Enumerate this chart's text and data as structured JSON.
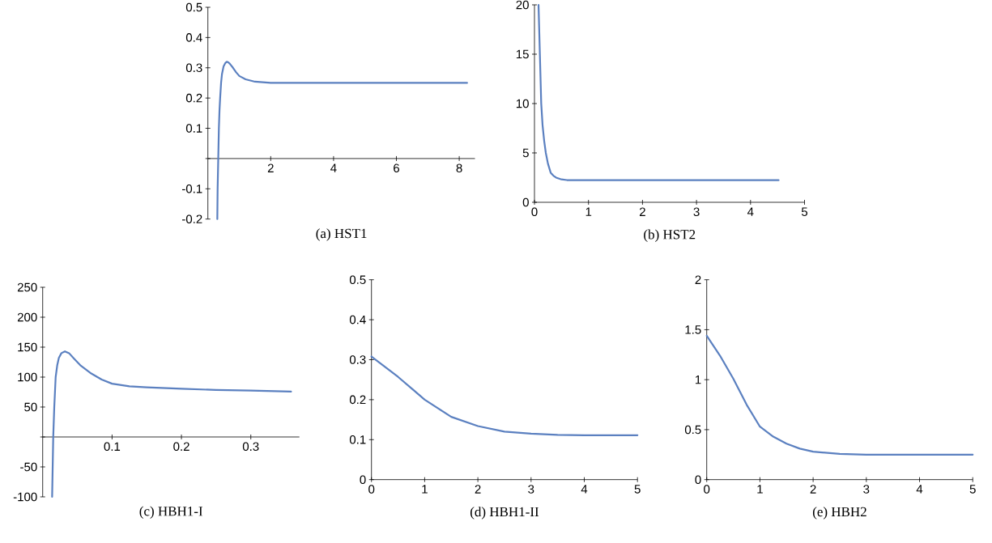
{
  "chart_data": [
    {
      "type": "line",
      "title": "(a) HST1",
      "color": "#5b80c0",
      "x": [
        0.3,
        0.31,
        0.33,
        0.35,
        0.37,
        0.39,
        0.42,
        0.45,
        0.5,
        0.55,
        0.6,
        0.65,
        0.7,
        0.8,
        0.9,
        1.0,
        1.2,
        1.5,
        2,
        4,
        8.25
      ],
      "values": [
        -0.2,
        -0.1,
        0,
        0.1,
        0.16,
        0.2,
        0.25,
        0.28,
        0.305,
        0.315,
        0.32,
        0.318,
        0.313,
        0.3,
        0.285,
        0.273,
        0.262,
        0.254,
        0.25,
        0.25,
        0.25
      ],
      "xlim": [
        0,
        8.5
      ],
      "ylim": [
        -0.2,
        0.5
      ],
      "xticks": [
        2,
        4,
        6,
        8
      ],
      "yticks": [
        -0.2,
        -0.1,
        {
          "value": 0,
          "label": null
        },
        0.1,
        0.2,
        0.3,
        0.4,
        0.5
      ]
    },
    {
      "type": "line",
      "title": "(b) HST2",
      "color": "#5b80c0",
      "x": [
        0.075,
        0.09,
        0.1,
        0.125,
        0.15,
        0.18,
        0.21,
        0.25,
        0.3,
        0.35,
        0.4,
        0.5,
        0.6,
        0.8,
        1,
        2,
        4.52
      ],
      "values": [
        20,
        17,
        15,
        10,
        7.8,
        6.2,
        5,
        3.9,
        3,
        2.7,
        2.5,
        2.32,
        2.25,
        2.24,
        2.24,
        2.24,
        2.24
      ],
      "xlim": [
        0,
        5
      ],
      "ylim": [
        0,
        20
      ],
      "xticks": [
        0,
        1,
        2,
        3,
        4,
        5
      ],
      "yticks": [
        0,
        5,
        10,
        15,
        20
      ]
    },
    {
      "type": "line",
      "title": "(c) HBH1-I",
      "color": "#5b80c0",
      "x": [
        0.0136,
        0.0152,
        0.0167,
        0.0187,
        0.021,
        0.0233,
        0.027,
        0.032,
        0.038,
        0.045,
        0.055,
        0.07,
        0.085,
        0.1,
        0.125,
        0.15,
        0.2,
        0.25,
        0.3,
        0.358
      ],
      "values": [
        -100,
        0,
        50,
        100,
        120,
        132,
        140,
        143,
        140,
        131,
        119,
        106,
        96,
        89,
        84.5,
        83,
        80.5,
        78.5,
        77.5,
        75.7
      ],
      "xlim": [
        0,
        0.37
      ],
      "ylim": [
        -100,
        250
      ],
      "xticks": [
        0.1,
        0.2,
        0.3
      ],
      "yticks": [
        -100,
        -50,
        {
          "value": 0,
          "label": null
        },
        50,
        100,
        150,
        200,
        250
      ]
    },
    {
      "type": "line",
      "title": "(d) HBH1-II",
      "color": "#5b80c0",
      "x": [
        0,
        0.5,
        1,
        1.5,
        2,
        2.5,
        3,
        3.5,
        4,
        5
      ],
      "values": [
        0.308,
        0.257,
        0.2,
        0.157,
        0.134,
        0.12,
        0.115,
        0.112,
        0.111,
        0.111
      ],
      "xlim": [
        0,
        5
      ],
      "ylim": [
        0,
        0.5
      ],
      "xticks": [
        0,
        1,
        2,
        3,
        4,
        5
      ],
      "yticks": [
        0,
        0.1,
        0.2,
        0.3,
        0.4,
        0.5
      ]
    },
    {
      "type": "line",
      "title": "(e) HBH2",
      "color": "#5b80c0",
      "x": [
        0,
        0.25,
        0.5,
        0.75,
        1,
        1.25,
        1.5,
        1.75,
        2,
        2.5,
        3,
        4,
        5
      ],
      "values": [
        1.44,
        1.24,
        1.01,
        0.75,
        0.53,
        0.43,
        0.36,
        0.31,
        0.28,
        0.257,
        0.25,
        0.25,
        0.25
      ],
      "xlim": [
        0,
        5
      ],
      "ylim": [
        0,
        2
      ],
      "xticks": [
        0,
        1,
        2,
        3,
        4,
        5
      ],
      "yticks": [
        0,
        0.5,
        1,
        1.5,
        2
      ]
    }
  ]
}
